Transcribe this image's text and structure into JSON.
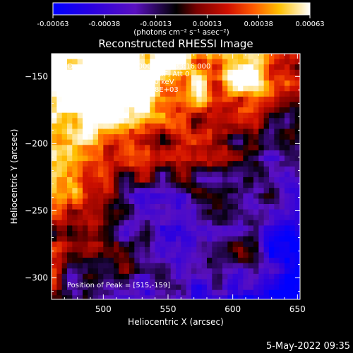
{
  "colorbar": {
    "tick_labels": [
      "-0.00063",
      "-0.00038",
      "-0.00013",
      "0.00013",
      "0.00038",
      "0.00063"
    ],
    "unit_label": "(photons cm⁻² s⁻¹ asec⁻²)",
    "colors": [
      "#0000ff",
      "#3a00d0",
      "#5a10c0",
      "#000000",
      "#8a0000",
      "#d01000",
      "#ff5000",
      "#ffb000",
      "#ffff80",
      "#ffffff"
    ]
  },
  "chart_data": {
    "type": "heatmap",
    "title": "Reconstructed RHESSI Image",
    "xlabel": "Heliocentric X (arcsec)",
    "ylabel": "Heliocentric Y (arcsec)",
    "xlim": [
      460,
      652
    ],
    "ylim": [
      -316,
      -133
    ],
    "x_ticks": [
      500,
      550,
      600,
      650
    ],
    "y_ticks": [
      -150,
      -200,
      -250,
      -300
    ],
    "x_tick_labels": [
      "500",
      "550",
      "600",
      "650"
    ],
    "y_tick_labels": [
      "−150",
      "−200",
      "−250",
      "−300"
    ],
    "value_range": [
      -0.00063,
      0.00063
    ],
    "peak_position": [
      515,
      -159
    ],
    "features": [
      {
        "region": "upper-left",
        "sign": "positive",
        "center": [
          515,
          -159
        ],
        "strength": 0.00063
      },
      {
        "region": "upper-right",
        "sign": "positive",
        "center": [
          610,
          -150
        ],
        "strength": 0.0004
      },
      {
        "region": "lower-right",
        "sign": "positive",
        "center": [
          605,
          -290
        ],
        "strength": 0.00035
      },
      {
        "region": "lower-center",
        "sign": "negative",
        "center": [
          540,
          -250
        ],
        "strength": -0.0005
      }
    ],
    "annotations": [
      "2-Dec-2004 21:28:16.000 to 21:33:16.000",
      "Detectors: 3F 4F 5F 6F 7F 8F, Att 0",
      "Energy Range: 12.0 - 25.0 keV",
      "Clean    Total Counts: 3.78E+03"
    ],
    "peak_label": "Position of Peak = [515,-159]"
  },
  "footer": {
    "timestamp": "5-May-2022 09:35"
  }
}
